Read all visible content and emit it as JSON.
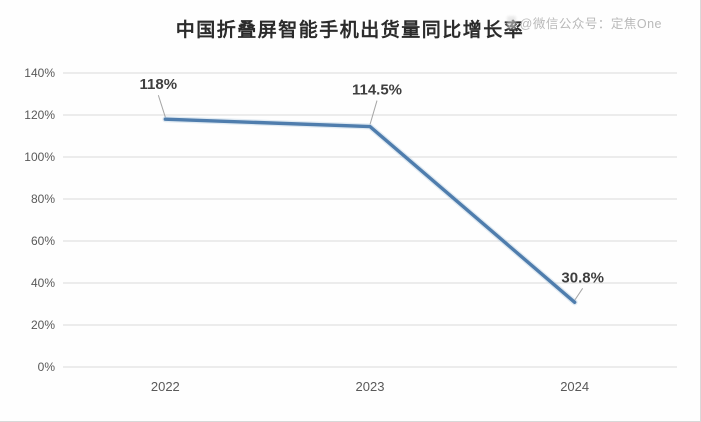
{
  "header": {
    "title": "中国折叠屏智能手机出货量同比增长率"
  },
  "watermark": {
    "icon": "watermark-logo-icon",
    "text": "@微信公众号：定焦One"
  },
  "chart_data": {
    "type": "line",
    "title": "中国折叠屏智能手机出货量同比增长率",
    "categories": [
      "2022",
      "2023",
      "2024"
    ],
    "values": [
      118,
      114.5,
      30.8
    ],
    "data_labels": [
      "118%",
      "114.5%",
      "30.8%"
    ],
    "xlabel": "",
    "ylabel": "",
    "ylim": [
      0,
      140
    ],
    "yticks": [
      0,
      20,
      40,
      60,
      80,
      100,
      120,
      140
    ],
    "ytick_labels": [
      "0%",
      "20%",
      "40%",
      "60%",
      "80%",
      "100%",
      "120%",
      "140%"
    ],
    "grid": true,
    "legend": "none",
    "colors": {
      "line": "#4f7dad",
      "line_halo": "#a9c6de",
      "grid": "#d9d9d9",
      "axis_text": "#595959",
      "data_label": "#3f3f3f",
      "leader": "#a6a6a6"
    }
  }
}
